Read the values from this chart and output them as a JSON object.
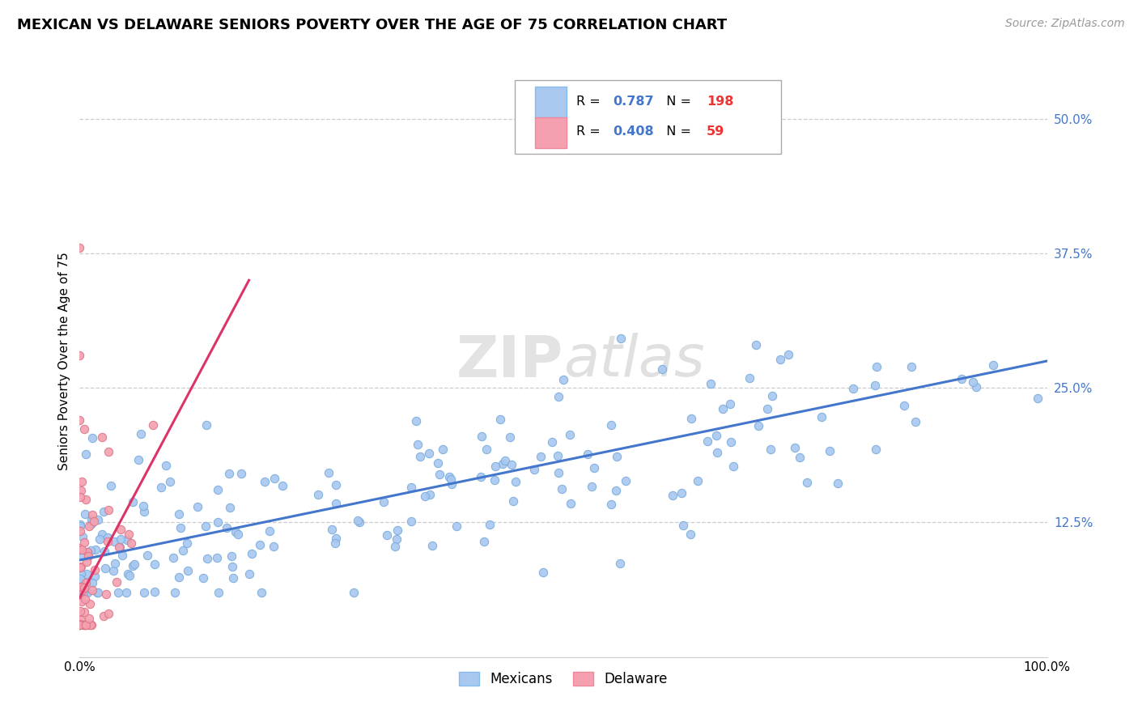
{
  "title": "MEXICAN VS DELAWARE SENIORS POVERTY OVER THE AGE OF 75 CORRELATION CHART",
  "source": "Source: ZipAtlas.com",
  "ylabel": "Seniors Poverty Over the Age of 75",
  "xlim": [
    0,
    1.0
  ],
  "ylim": [
    0.0,
    0.55
  ],
  "ytick_positions": [
    0.125,
    0.25,
    0.375,
    0.5
  ],
  "yticklabels": [
    "12.5%",
    "25.0%",
    "37.5%",
    "50.0%"
  ],
  "blue_scatter_color": "#a8c8f0",
  "pink_scatter_color": "#f4a0b0",
  "blue_line_color": "#4477cc",
  "pink_line_color": "#dd3366",
  "R_blue": 0.787,
  "N_blue": 198,
  "R_pink": 0.408,
  "N_pink": 59,
  "watermark_zip": "ZIP",
  "watermark_atlas": "atlas",
  "title_fontsize": 13,
  "axis_label_fontsize": 11,
  "tick_fontsize": 11,
  "source_fontsize": 10,
  "blue_trend_x": [
    0.0,
    1.0
  ],
  "blue_trend_y": [
    0.09,
    0.275
  ],
  "pink_trend_x": [
    0.0,
    0.175
  ],
  "pink_trend_y": [
    0.055,
    0.35
  ]
}
